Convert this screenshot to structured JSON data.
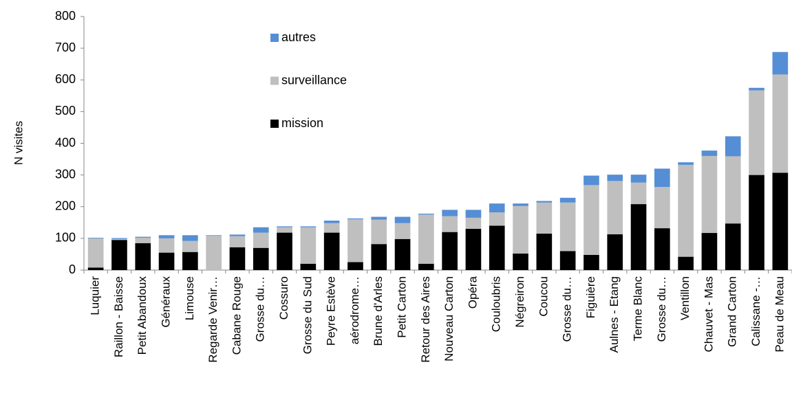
{
  "chart_data": {
    "type": "stacked-bar",
    "y_label": "N visites",
    "categories": [
      "Luquier",
      "Raillon - Baisse",
      "Petit Abandoux",
      "Généraux",
      "Limouse",
      "Regarde Venir…",
      "Cabane Rouge",
      "Grosse du…",
      "Cossuro",
      "Grosse du Sud",
      "Peyre Estève",
      "aérodrome…",
      "Brune d'Arles",
      "Petit Carton",
      "Retour des Aires",
      "Nouveau Carton",
      "Opéra",
      "Couloubris",
      "Négreiron",
      "Coucou",
      "Grosse du…",
      "Figuière",
      "Aulnes - Etang",
      "Terme Blanc",
      "Grosse du…",
      "Ventillon",
      "Chauvet - Mas",
      "Grand Carton",
      "Calissane -…",
      "Peau de Meau"
    ],
    "series": [
      {
        "name": "mission",
        "color": "#000000",
        "values": [
          8,
          95,
          85,
          55,
          57,
          0,
          72,
          70,
          118,
          20,
          118,
          25,
          82,
          98,
          20,
          120,
          130,
          140,
          52,
          115,
          60,
          48,
          113,
          208,
          132,
          42,
          117,
          147,
          300,
          307
        ]
      },
      {
        "name": "surveillance",
        "color": "#bfbfbf",
        "values": [
          92,
          3,
          17,
          45,
          35,
          108,
          35,
          48,
          17,
          115,
          30,
          135,
          77,
          50,
          155,
          50,
          35,
          42,
          150,
          98,
          153,
          220,
          168,
          68,
          130,
          290,
          243,
          212,
          267,
          310
        ]
      },
      {
        "name": "autres",
        "color": "#558ed5",
        "values": [
          2,
          3,
          3,
          10,
          18,
          2,
          5,
          17,
          3,
          3,
          8,
          3,
          9,
          20,
          3,
          20,
          25,
          28,
          8,
          5,
          15,
          30,
          20,
          25,
          58,
          8,
          17,
          63,
          8,
          71
        ]
      }
    ],
    "ylim": [
      0,
      800
    ],
    "yticks": [
      0,
      100,
      200,
      300,
      400,
      500,
      600,
      700,
      800
    ]
  }
}
